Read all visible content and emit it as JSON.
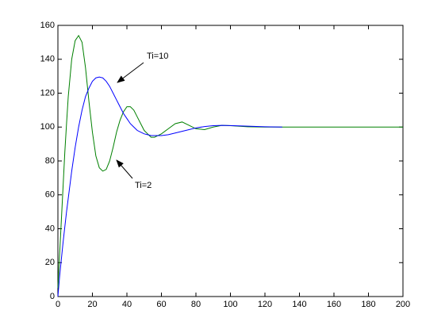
{
  "chart_data": {
    "type": "line",
    "x": [
      0,
      1,
      2,
      3,
      4,
      5,
      6,
      8,
      10,
      12,
      14,
      16,
      18,
      20,
      22,
      24,
      26,
      28,
      30,
      32,
      34,
      36,
      38,
      40,
      42,
      44,
      46,
      48,
      50,
      52,
      54,
      56,
      58,
      60,
      64,
      68,
      72,
      76,
      80,
      85,
      90,
      95,
      100,
      110,
      120,
      130,
      140,
      160,
      180,
      200
    ],
    "series": [
      {
        "name": "Ti=2",
        "color": "#008000",
        "values": [
          5,
          25,
          45,
          65,
          85,
          102,
          118,
          140,
          151,
          154,
          150,
          135,
          115,
          97,
          83,
          76,
          74,
          75,
          80,
          88,
          97,
          104,
          109,
          112,
          112,
          110,
          106,
          102,
          98,
          96,
          94,
          94,
          95,
          96,
          99,
          102,
          103,
          101,
          99,
          98.5,
          100,
          101,
          100.8,
          100.2,
          100,
          100,
          100,
          100,
          100,
          100
        ]
      },
      {
        "name": "Ti=10",
        "color": "#0000ff",
        "values": [
          0,
          12,
          22,
          32,
          41,
          50,
          58,
          74,
          88,
          100,
          110,
          118,
          123,
          127,
          129,
          129.5,
          129,
          127,
          124,
          120,
          116,
          112,
          108,
          105,
          102,
          100,
          98,
          97,
          96,
          95.5,
          95,
          95,
          95,
          95,
          95.5,
          96.5,
          97.5,
          98.5,
          99.5,
          100.3,
          100.8,
          101,
          100.9,
          100.5,
          100.2,
          100,
          null,
          null,
          null,
          null
        ]
      }
    ],
    "annotations": [
      "Ti=10",
      "Ti=2"
    ],
    "xlim": [
      0,
      200
    ],
    "xticks": [
      0,
      20,
      40,
      60,
      80,
      100,
      120,
      140,
      160,
      180,
      200
    ],
    "ylim": [
      0,
      160
    ],
    "yticks": [
      0,
      20,
      40,
      60,
      80,
      100,
      120,
      140,
      160
    ],
    "grid": false
  }
}
